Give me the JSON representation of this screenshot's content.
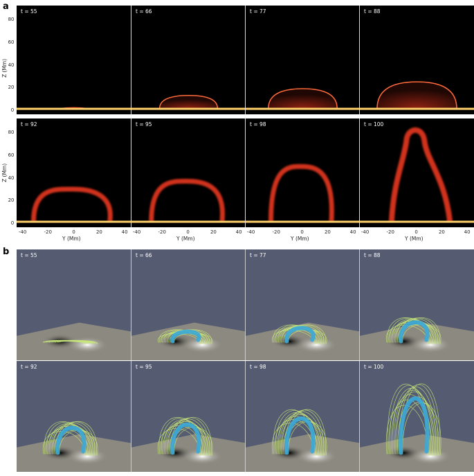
{
  "panel_a": {
    "letter": "a",
    "z_axis_label": "Z (Mm)",
    "y_axis_label": "Y (Mm)",
    "z_ticks": [
      "0",
      "20",
      "40",
      "60",
      "80"
    ],
    "y_ticks": [
      "-40",
      "-20",
      "0",
      "20",
      "40"
    ],
    "frames": [
      {
        "label": "t = 55",
        "height_mm": 3,
        "shape": "flat"
      },
      {
        "label": "t = 66",
        "height_mm": 13,
        "shape": "dome"
      },
      {
        "label": "t = 77",
        "height_mm": 19,
        "shape": "dome"
      },
      {
        "label": "t = 88",
        "height_mm": 25,
        "shape": "dome"
      },
      {
        "label": "t = 92",
        "height_mm": 30,
        "shape": "arch"
      },
      {
        "label": "t = 95",
        "height_mm": 37,
        "shape": "arch"
      },
      {
        "label": "t = 98",
        "height_mm": 50,
        "shape": "arch"
      },
      {
        "label": "t = 100",
        "height_mm": 85,
        "shape": "tall"
      }
    ]
  },
  "panel_b": {
    "letter": "b",
    "frames": [
      {
        "label": "t = 55"
      },
      {
        "label": "t = 66"
      },
      {
        "label": "t = 77"
      },
      {
        "label": "t = 88"
      },
      {
        "label": "t = 92"
      },
      {
        "label": "t = 95"
      },
      {
        "label": "t = 98"
      },
      {
        "label": "t = 100"
      }
    ]
  },
  "colors": {
    "plasma": "#d0301a",
    "plasma_bright": "#ff6a3a",
    "photosphere": "#ffcf6a",
    "sky": "#555b70",
    "floor": "#8c8a80",
    "rope": "#3aa8d8",
    "fieldline": "#c8e87a"
  }
}
